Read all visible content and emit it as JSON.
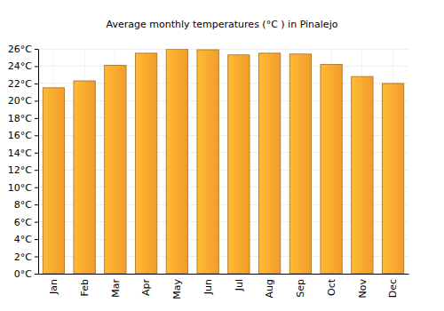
{
  "chart_data": {
    "type": "bar",
    "title": "Average monthly temperatures (°C ) in Pinalejo",
    "categories": [
      "Jan",
      "Feb",
      "Mar",
      "Apr",
      "May",
      "Jun",
      "Jul",
      "Aug",
      "Sep",
      "Oct",
      "Nov",
      "Dec"
    ],
    "values": [
      21.5,
      22.3,
      24.1,
      25.5,
      26.0,
      25.9,
      25.3,
      25.5,
      25.4,
      24.2,
      22.8,
      22.0
    ],
    "color": "#ffa52e",
    "ylim": [
      0,
      26
    ],
    "yticks": [
      {
        "value": 0,
        "label": "0°C"
      },
      {
        "value": 2,
        "label": "2°C"
      },
      {
        "value": 4,
        "label": "4°C"
      },
      {
        "value": 6,
        "label": "6°C"
      },
      {
        "value": 8,
        "label": "8°C"
      },
      {
        "value": 10,
        "label": "10°C"
      },
      {
        "value": 12,
        "label": "12°C"
      },
      {
        "value": 14,
        "label": "14°C"
      },
      {
        "value": 16,
        "label": "16°C"
      },
      {
        "value": 18,
        "label": "18°C"
      },
      {
        "value": 20,
        "label": "20°C"
      },
      {
        "value": 22,
        "label": "22°C"
      },
      {
        "value": 24,
        "label": "24°C"
      },
      {
        "value": 26,
        "label": "26°C"
      }
    ],
    "grid": true
  }
}
